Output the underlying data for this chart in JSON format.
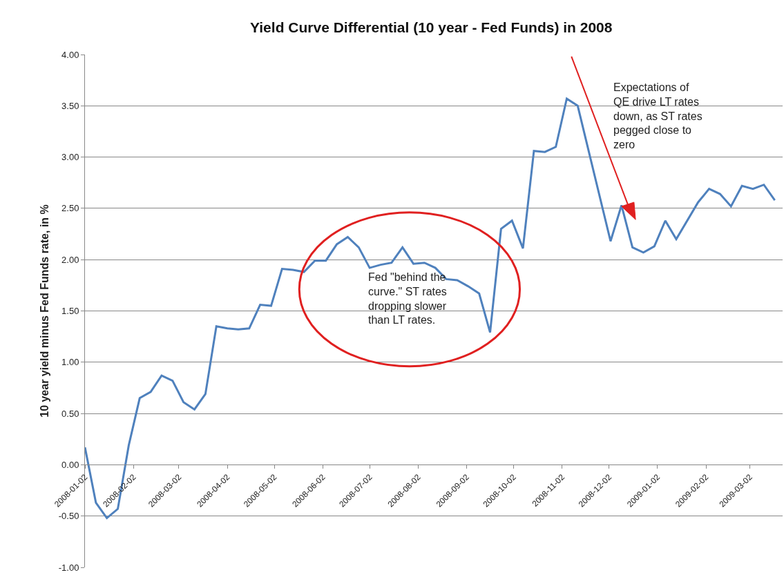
{
  "chart_data": {
    "type": "line",
    "title": "Yield Curve Differential (10 year - Fed Funds) in 2008",
    "ylabel": "10 year yield minus Fed Funds rate, in %",
    "x": [
      "2008-01-02",
      "2008-01-09",
      "2008-01-16",
      "2008-01-23",
      "2008-01-30",
      "2008-02-06",
      "2008-02-13",
      "2008-02-20",
      "2008-02-27",
      "2008-03-05",
      "2008-03-12",
      "2008-03-19",
      "2008-03-26",
      "2008-04-02",
      "2008-04-09",
      "2008-04-16",
      "2008-04-23",
      "2008-04-30",
      "2008-05-07",
      "2008-05-14",
      "2008-05-21",
      "2008-05-28",
      "2008-06-04",
      "2008-06-11",
      "2008-06-18",
      "2008-06-25",
      "2008-07-02",
      "2008-07-09",
      "2008-07-16",
      "2008-07-23",
      "2008-07-30",
      "2008-08-06",
      "2008-08-13",
      "2008-08-20",
      "2008-08-27",
      "2008-09-03",
      "2008-09-10",
      "2008-09-17",
      "2008-09-24",
      "2008-10-01",
      "2008-10-08",
      "2008-10-15",
      "2008-10-22",
      "2008-10-29",
      "2008-11-05",
      "2008-11-12",
      "2008-12-03",
      "2008-12-10",
      "2008-12-17",
      "2008-12-24",
      "2008-12-31",
      "2009-01-07",
      "2009-01-14",
      "2009-01-28",
      "2009-02-04",
      "2009-02-11",
      "2009-02-18",
      "2009-02-25",
      "2009-03-04",
      "2009-03-11",
      "2009-03-18"
    ],
    "series": [
      {
        "color": "#4f81bd",
        "values": [
          0.17,
          -0.37,
          -0.52,
          -0.43,
          0.19,
          0.65,
          0.71,
          0.87,
          0.82,
          0.61,
          0.54,
          0.69,
          1.35,
          1.33,
          1.32,
          1.33,
          1.56,
          1.55,
          1.91,
          1.9,
          1.88,
          1.99,
          1.99,
          2.15,
          2.22,
          2.12,
          1.92,
          1.95,
          1.97,
          2.12,
          1.96,
          1.97,
          1.92,
          1.81,
          1.8,
          1.74,
          1.67,
          1.29,
          2.3,
          2.38,
          2.11,
          3.06,
          3.05,
          3.1,
          3.57,
          3.5,
          2.18,
          2.53,
          2.12,
          2.07,
          2.13,
          2.38,
          2.2,
          2.56,
          2.69,
          2.64,
          2.52,
          2.72,
          2.69,
          2.73,
          2.58
        ]
      }
    ],
    "xlim": [
      "2008-01-02",
      "2009-03-23"
    ],
    "xticks": [
      {
        "value": "2008-01-02",
        "label": "2008-01-02"
      },
      {
        "value": "2008-02-02",
        "label": "2008-02-02"
      },
      {
        "value": "2008-03-02",
        "label": "2008-03-02"
      },
      {
        "value": "2008-04-02",
        "label": "2008-04-02"
      },
      {
        "value": "2008-05-02",
        "label": "2008-05-02"
      },
      {
        "value": "2008-06-02",
        "label": "2008-06-02"
      },
      {
        "value": "2008-07-02",
        "label": "2008-07-02"
      },
      {
        "value": "2008-08-02",
        "label": "2008-08-02"
      },
      {
        "value": "2008-09-02",
        "label": "2008-09-02"
      },
      {
        "value": "2008-10-02",
        "label": "2008-10-02"
      },
      {
        "value": "2008-11-02",
        "label": "2008-11-02"
      },
      {
        "value": "2008-12-02",
        "label": "2008-12-02"
      },
      {
        "value": "2009-01-02",
        "label": "2009-01-02"
      },
      {
        "value": "2009-02-02",
        "label": "2009-02-02"
      },
      {
        "value": "2009-03-02",
        "label": "2009-03-02"
      }
    ],
    "ylim": [
      -1,
      4
    ],
    "yticks": [
      {
        "value": -1,
        "label": "-1.00"
      },
      {
        "value": -0.5,
        "label": "-0.50"
      },
      {
        "value": 0,
        "label": "0.00"
      },
      {
        "value": 0.5,
        "label": "0.50"
      },
      {
        "value": 1,
        "label": "1.00"
      },
      {
        "value": 1.5,
        "label": "1.50"
      },
      {
        "value": 2,
        "label": "2.00"
      },
      {
        "value": 2.5,
        "label": "2.50"
      },
      {
        "value": 3,
        "label": "3.00"
      },
      {
        "value": 3.5,
        "label": "3.50"
      },
      {
        "value": 4,
        "label": "4.00"
      }
    ],
    "grid": "y",
    "marker": "none",
    "line_style": "solid",
    "annotations": [
      "Fed \"behind the curve.\" ST rates dropping slower than LT rates.",
      "Expectations of QE drive LT rates down, as ST rates pegged close to zero"
    ]
  }
}
